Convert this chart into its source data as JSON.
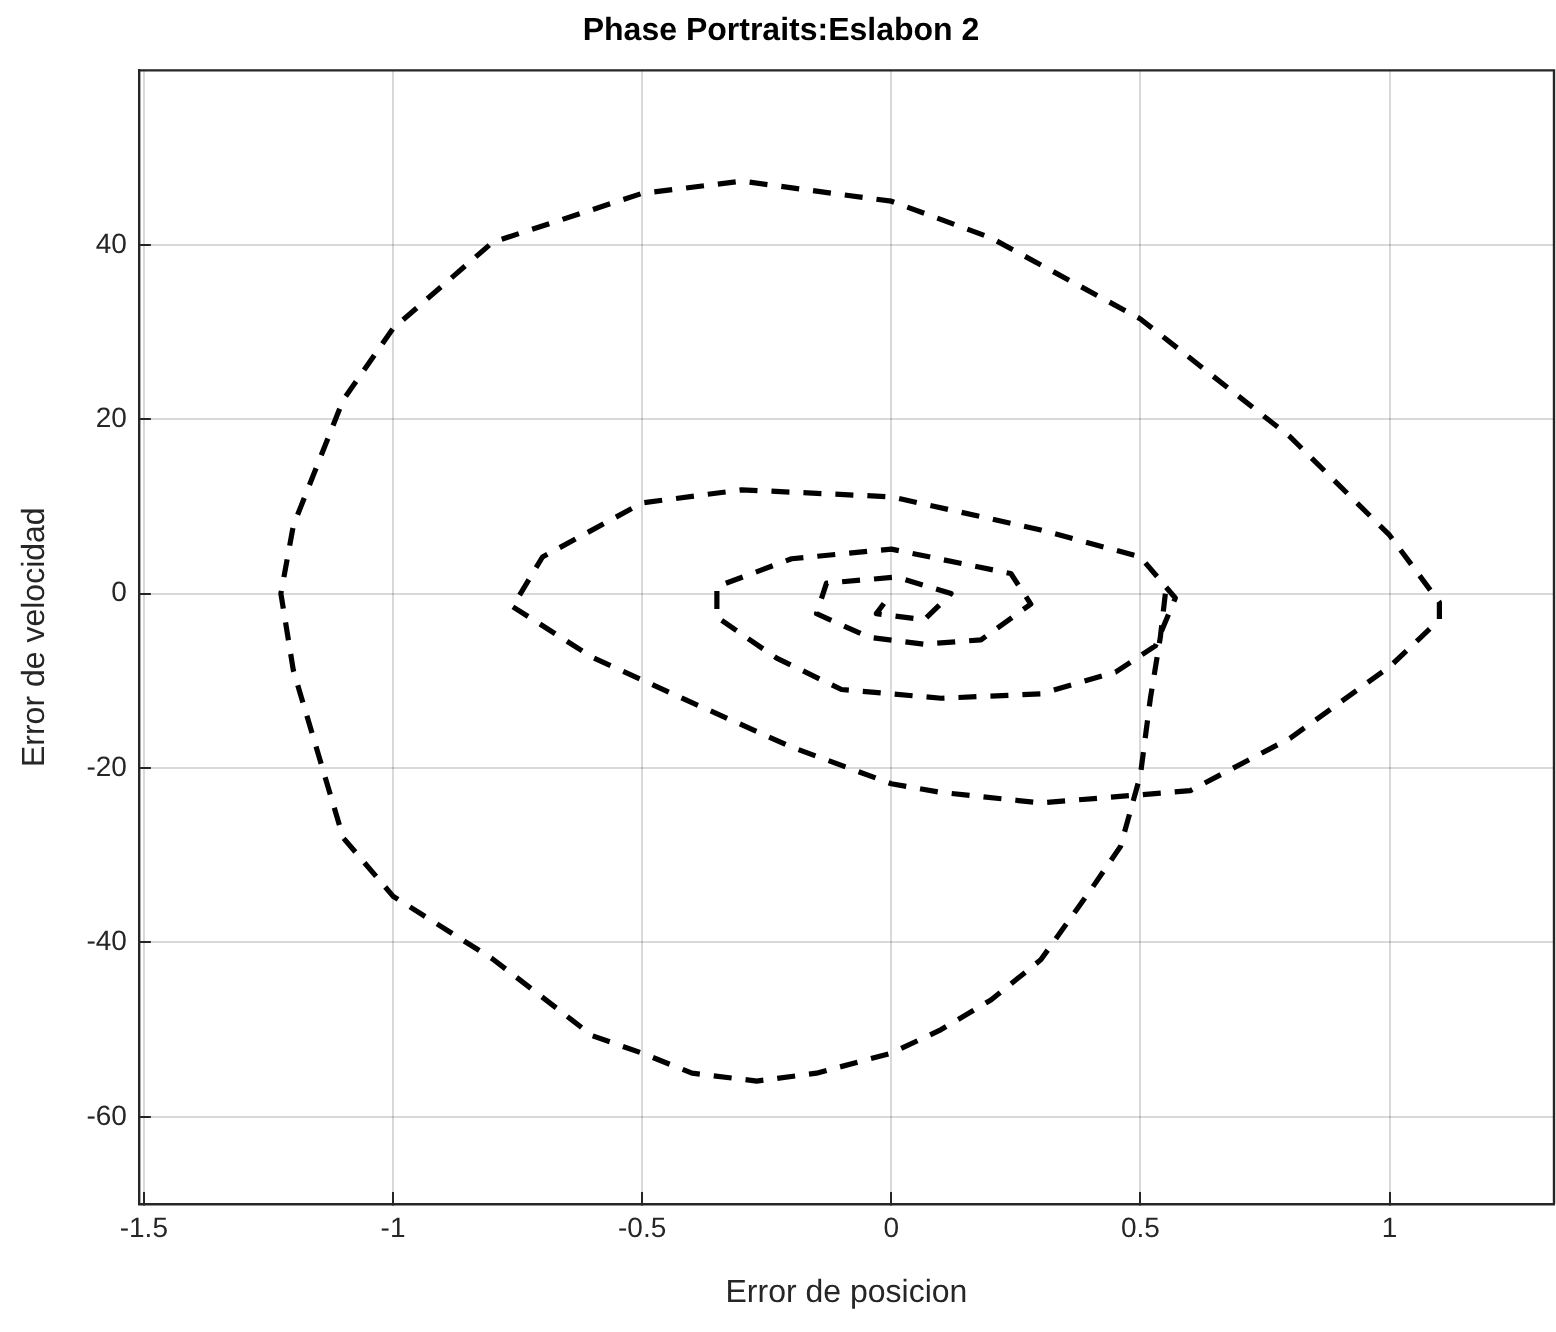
{
  "chart_data": {
    "type": "line",
    "title": "Phase Portraits:Eslabon 2",
    "xlabel": "Error de posicion",
    "ylabel": "Error de velocidad",
    "xlim": [
      -1.51,
      1.33
    ],
    "ylim": [
      -70,
      60
    ],
    "xticks": [
      -1.5,
      -1,
      -0.5,
      0,
      0.5,
      1
    ],
    "yticks": [
      -60,
      -40,
      -20,
      0,
      20,
      40
    ],
    "grid": true,
    "legend": false,
    "marker": "none",
    "line_style": "dashed",
    "series": [
      {
        "color": "#000000",
        "x": [
          0.55,
          0.54,
          0.52,
          0.5,
          0.46,
          0.4,
          0.3,
          0.2,
          0.1,
          0,
          -0.15,
          -0.27,
          -0.4,
          -0.5,
          -0.6,
          -0.8,
          -1,
          -1.1,
          -1.2,
          -1.225,
          -1.2,
          -1.1,
          -1,
          -0.8,
          -0.5,
          -0.3,
          0,
          0.2,
          0.5,
          0.8,
          1,
          1.1,
          1.1,
          1,
          0.8,
          0.6,
          0.3,
          0.1,
          0,
          -0.2,
          -0.4,
          -0.6,
          -0.76,
          -0.7,
          -0.5,
          -0.3,
          0,
          0.3,
          0.5,
          0.57,
          0.53,
          0.45,
          0.3,
          0.1,
          -0.1,
          -0.23,
          -0.35,
          -0.35,
          -0.2,
          0,
          0.24,
          0.28,
          0.18,
          0.066,
          -0.045,
          -0.15,
          -0.13,
          0.01,
          0.12,
          0.066,
          -0.03,
          0
        ],
        "values": [
          0,
          -5,
          -12,
          -20.8,
          -29,
          -34,
          -42,
          -46.6,
          -50,
          -52.7,
          -55,
          -55.9,
          -55,
          -52.7,
          -50.7,
          -41.9,
          -34.7,
          -28,
          -8.8,
          0,
          7.8,
          22.2,
          30.4,
          40.3,
          45.9,
          47.3,
          45,
          40.8,
          31.5,
          18,
          6.7,
          -1,
          -3,
          -8.4,
          -16.6,
          -22.6,
          -24,
          -22.8,
          -21.8,
          -17.6,
          -12.5,
          -7.3,
          -1.5,
          4.2,
          10.4,
          11.9,
          11.1,
          7.3,
          4.2,
          -0.5,
          -6,
          -9,
          -11.5,
          -12,
          -11,
          -7.4,
          -2.7,
          0.8,
          4,
          5.1,
          2.3,
          -1.2,
          -5.3,
          -5.8,
          -5,
          -2.3,
          1.2,
          1.9,
          0,
          -3,
          -2.3,
          0
        ]
      }
    ]
  }
}
